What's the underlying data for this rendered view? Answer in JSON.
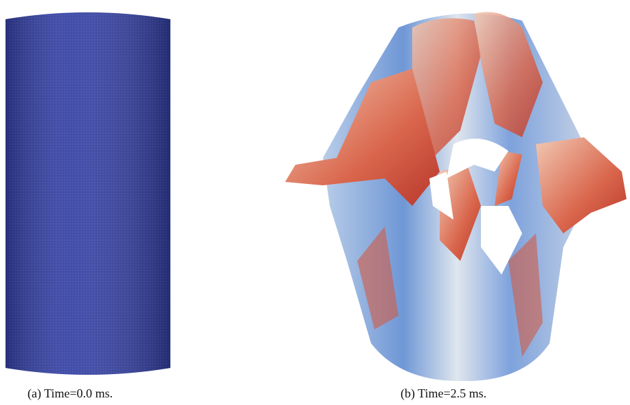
{
  "figures": [
    {
      "caption": "(a) Time=0.0 ms."
    },
    {
      "caption": "(b) Time=2.5 ms."
    }
  ]
}
